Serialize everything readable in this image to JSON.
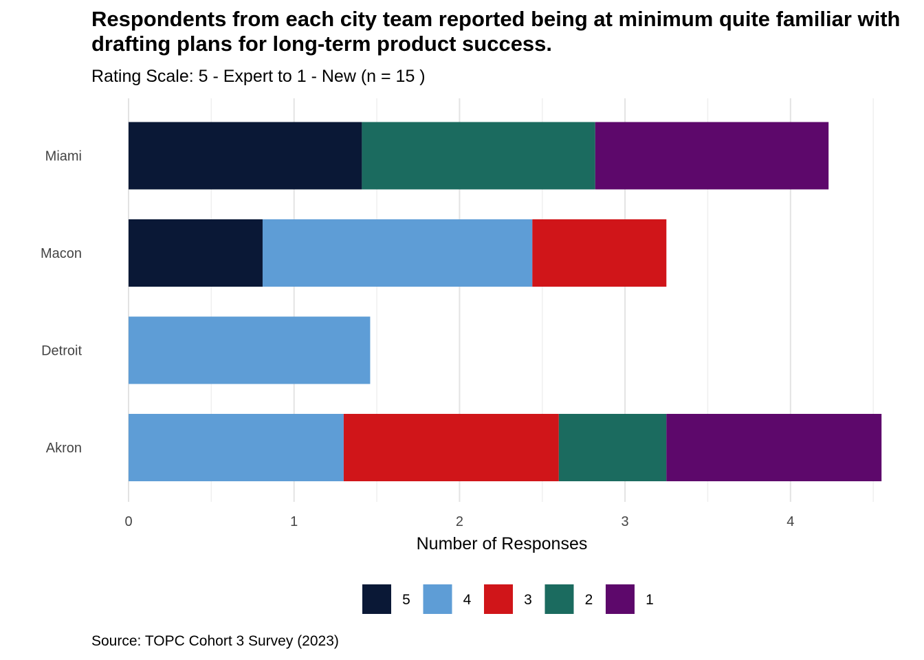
{
  "chart_data": {
    "type": "bar",
    "orientation": "horizontal",
    "stacked": true,
    "title": "Respondents from each city team reported being at minimum quite familiar with drafting plans for long-term product success.",
    "subtitle": "Rating Scale: 5 - Expert to 1 - New (n = 15 )",
    "caption": "Source: TOPC Cohort 3 Survey (2023)",
    "xlabel": "Number of Responses",
    "ylabel": "",
    "xlim": [
      0,
      4.52
    ],
    "x_ticks": [
      0,
      1,
      2,
      3,
      4
    ],
    "grid": true,
    "legend_position": "bottom",
    "categories": [
      "Miami",
      "Macon",
      "Detroit",
      "Akron"
    ],
    "series": [
      {
        "name": "5",
        "color": "#0a1836",
        "values": [
          1.41,
          0.81,
          0,
          0
        ]
      },
      {
        "name": "4",
        "color": "#5e9dd6",
        "values": [
          0,
          1.63,
          1.46,
          1.3
        ]
      },
      {
        "name": "3",
        "color": "#d01519",
        "values": [
          0,
          0.81,
          0,
          1.3
        ]
      },
      {
        "name": "2",
        "color": "#1b6b5f",
        "values": [
          1.41,
          0,
          0,
          0.65
        ]
      },
      {
        "name": "1",
        "color": "#5d086b",
        "values": [
          1.41,
          0,
          0,
          1.3
        ]
      }
    ]
  }
}
